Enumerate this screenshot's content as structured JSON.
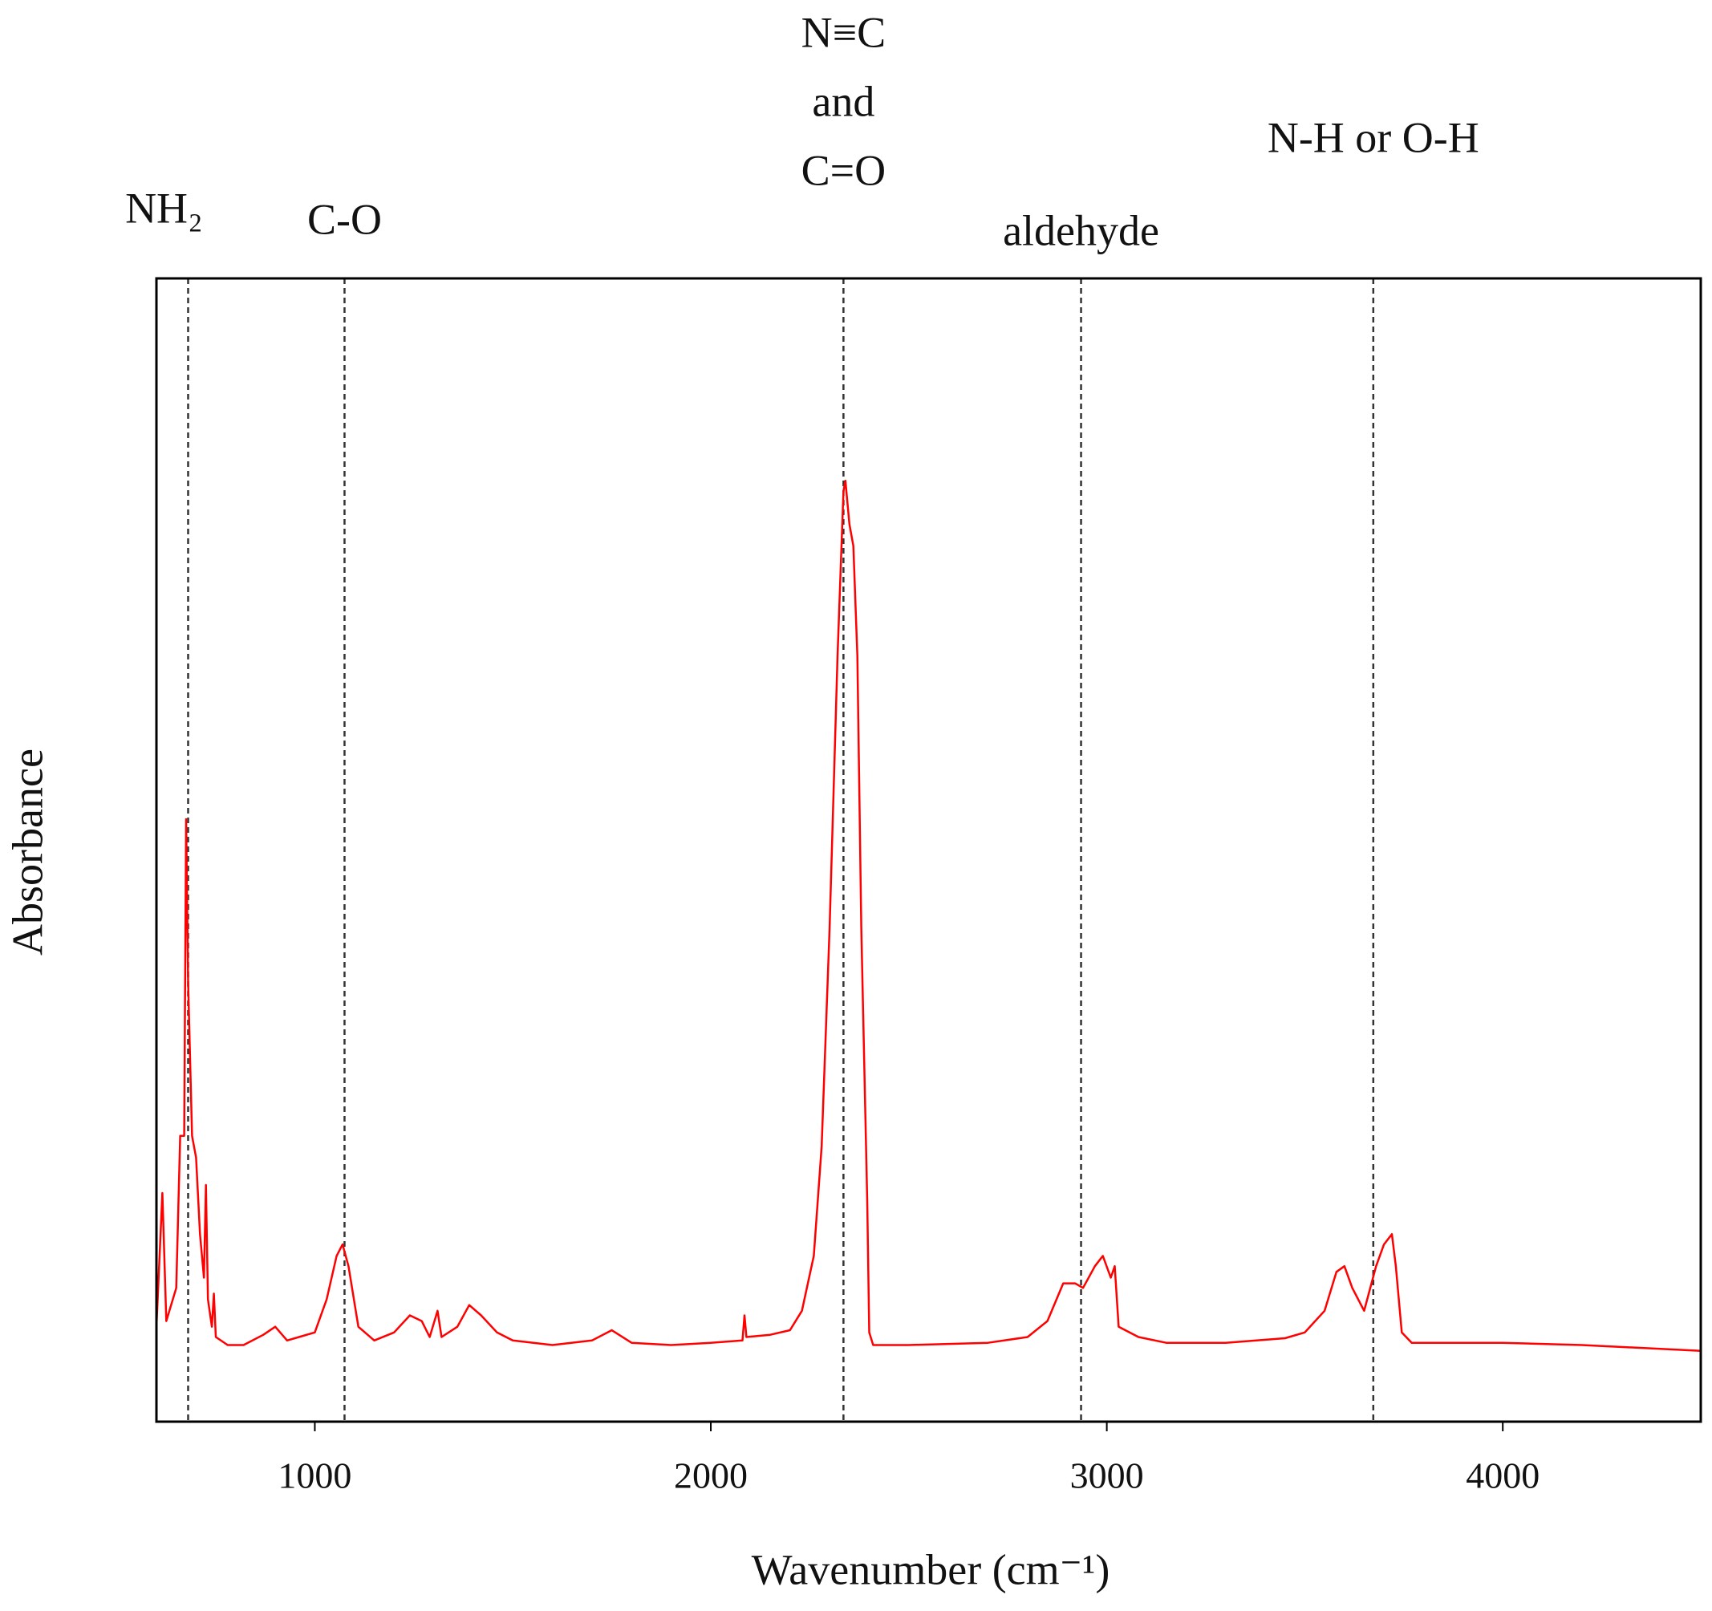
{
  "chart_data": {
    "type": "line",
    "x_label": "Wavenumber (cm⁻¹)",
    "y_label": "Absorbance",
    "xlim": [
      600,
      4500
    ],
    "ylim": [
      0,
      1
    ],
    "xticks": [
      1000,
      2000,
      3000,
      4000
    ],
    "annotations": [
      {
        "x": 680,
        "label": [
          "NH₂"
        ]
      },
      {
        "x": 1075,
        "label": [
          "C-O"
        ]
      },
      {
        "x": 2335,
        "label": [
          "N≡C",
          "and",
          "C=O"
        ]
      },
      {
        "x": 2935,
        "label": [
          "aldehyde"
        ]
      },
      {
        "x": 3673,
        "label": [
          "N-H or O-H"
        ]
      }
    ],
    "series": [
      {
        "color": "#ff0000",
        "x": [
          600,
          615,
          625,
          650,
          660,
          670,
          675,
          680,
          690,
          700,
          710,
          720,
          725,
          730,
          740,
          745,
          750,
          780,
          820,
          870,
          900,
          930,
          960,
          1000,
          1030,
          1055,
          1070,
          1085,
          1110,
          1150,
          1200,
          1240,
          1270,
          1290,
          1310,
          1320,
          1360,
          1390,
          1420,
          1460,
          1500,
          1600,
          1700,
          1750,
          1800,
          1900,
          2000,
          2080,
          2085,
          2090,
          2150,
          2200,
          2230,
          2260,
          2280,
          2300,
          2320,
          2335,
          2340,
          2350,
          2360,
          2370,
          2380,
          2395,
          2400,
          2410,
          2500,
          2700,
          2800,
          2850,
          2890,
          2920,
          2940,
          2970,
          2990,
          3010,
          3020,
          3030,
          3080,
          3150,
          3300,
          3450,
          3500,
          3550,
          3580,
          3600,
          3620,
          3650,
          3680,
          3700,
          3720,
          3730,
          3745,
          3770,
          4000,
          4200,
          4500
        ],
        "values": [
          0.083,
          0.2,
          0.088,
          0.117,
          0.25,
          0.25,
          0.527,
          0.384,
          0.25,
          0.231,
          0.164,
          0.126,
          0.207,
          0.107,
          0.083,
          0.112,
          0.074,
          0.067,
          0.067,
          0.076,
          0.083,
          0.071,
          0.074,
          0.078,
          0.107,
          0.145,
          0.155,
          0.136,
          0.083,
          0.071,
          0.078,
          0.093,
          0.088,
          0.074,
          0.097,
          0.074,
          0.083,
          0.102,
          0.093,
          0.078,
          0.071,
          0.067,
          0.071,
          0.08,
          0.069,
          0.067,
          0.069,
          0.071,
          0.093,
          0.074,
          0.076,
          0.08,
          0.097,
          0.145,
          0.241,
          0.432,
          0.67,
          0.814,
          0.823,
          0.785,
          0.766,
          0.67,
          0.432,
          0.193,
          0.078,
          0.067,
          0.067,
          0.069,
          0.074,
          0.088,
          0.121,
          0.121,
          0.117,
          0.136,
          0.145,
          0.126,
          0.136,
          0.083,
          0.074,
          0.069,
          0.069,
          0.073,
          0.078,
          0.097,
          0.131,
          0.136,
          0.117,
          0.097,
          0.136,
          0.155,
          0.164,
          0.136,
          0.078,
          0.069,
          0.069,
          0.067,
          0.062
        ]
      }
    ]
  }
}
